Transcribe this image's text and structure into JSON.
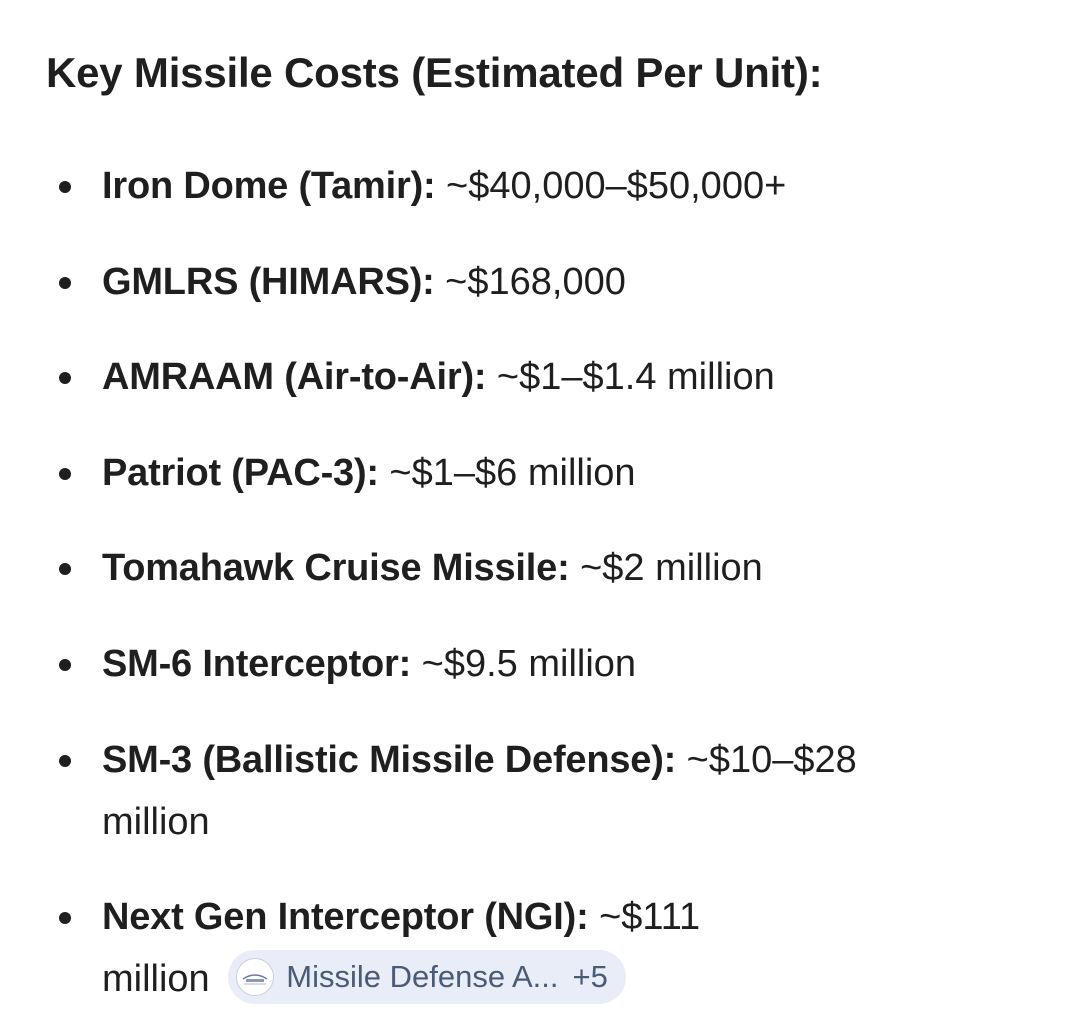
{
  "heading": "Key Missile Costs (Estimated Per Unit):",
  "items": [
    {
      "name": "Iron Dome (Tamir):",
      "value": " ~$40,000–$50,000+"
    },
    {
      "name": "GMLRS (HIMARS):",
      "value": " ~$168,000"
    },
    {
      "name": "AMRAAM (Air-to-Air):",
      "value": " ~$1–$1.4 million"
    },
    {
      "name": "Patriot (PAC-3):",
      "value": " ~$1–$6 million"
    },
    {
      "name": "Tomahawk Cruise Missile:",
      "value": " ~$2 million"
    },
    {
      "name": "SM-6 Interceptor:",
      "value": " ~$9.5 million"
    },
    {
      "name": "SM-3 (Ballistic Missile Defense):",
      "value": " ~$10–$28 million"
    },
    {
      "name": "Next Gen Interceptor (NGI):",
      "value": " ~$111 million"
    }
  ],
  "source_chip": {
    "label": "Missile Defense A...",
    "more": "+5",
    "logo_icon": "mda-logo-icon",
    "background": "#e9edf8",
    "text_color": "#4a5b76"
  }
}
